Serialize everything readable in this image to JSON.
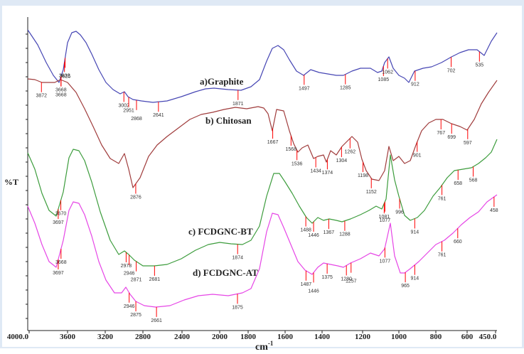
{
  "chart_data": {
    "type": "line",
    "xlabel": "cm",
    "xlabel_exponent": "-1",
    "ylabel": "%T",
    "xlim": [
      4000,
      450
    ],
    "x_axis_reversed": true,
    "x_ticks": [
      "4000.0",
      "3600",
      "3200",
      "2800",
      "2400",
      "2000",
      "1800",
      "1600",
      "1400",
      "1200",
      "1000",
      "800",
      "600",
      "450.0"
    ],
    "colors": {
      "graphite": "#4646b4",
      "chitosan": "#a03c3c",
      "fcdgnc_bt": "#3c9c3c",
      "fcdgnc_at": "#e646e6",
      "peak_marker": "#ff0000",
      "axis": "#222222"
    },
    "series": [
      {
        "key": "graphite",
        "name": "a)Graphite",
        "peaks": [
          "3668",
          "3632",
          "3625",
          "3668",
          "3002",
          "2951",
          "2868",
          "2641",
          "1871",
          "1497",
          "1285",
          "1085",
          "1062",
          "912",
          "702",
          "535"
        ]
      },
      {
        "key": "chitosan",
        "name": "b) Chitosan",
        "peaks": [
          "3872",
          "2876",
          "1667",
          "1568",
          "1536",
          "1434",
          "1374",
          "1304",
          "1262",
          "1198",
          "1152",
          "901",
          "767",
          "699",
          "597"
        ]
      },
      {
        "key": "fcdgnc_bt",
        "name": "c) FCDGNC-BT",
        "peaks": [
          "3670",
          "3697",
          "2978",
          "2946",
          "2871",
          "2681",
          "1874",
          "1488",
          "1446",
          "1367",
          "1288",
          "1081",
          "1077",
          "996",
          "914",
          "761",
          "658",
          "568"
        ]
      },
      {
        "key": "fcdgnc_at",
        "name": "d) FCDGNC-AT",
        "peaks": [
          "3668",
          "3697",
          "2946",
          "2875",
          "2661",
          "1875",
          "1487",
          "1446",
          "1375",
          "1280",
          "1257",
          "1077",
          "965",
          "914",
          "761",
          "660",
          "458"
        ]
      }
    ]
  }
}
